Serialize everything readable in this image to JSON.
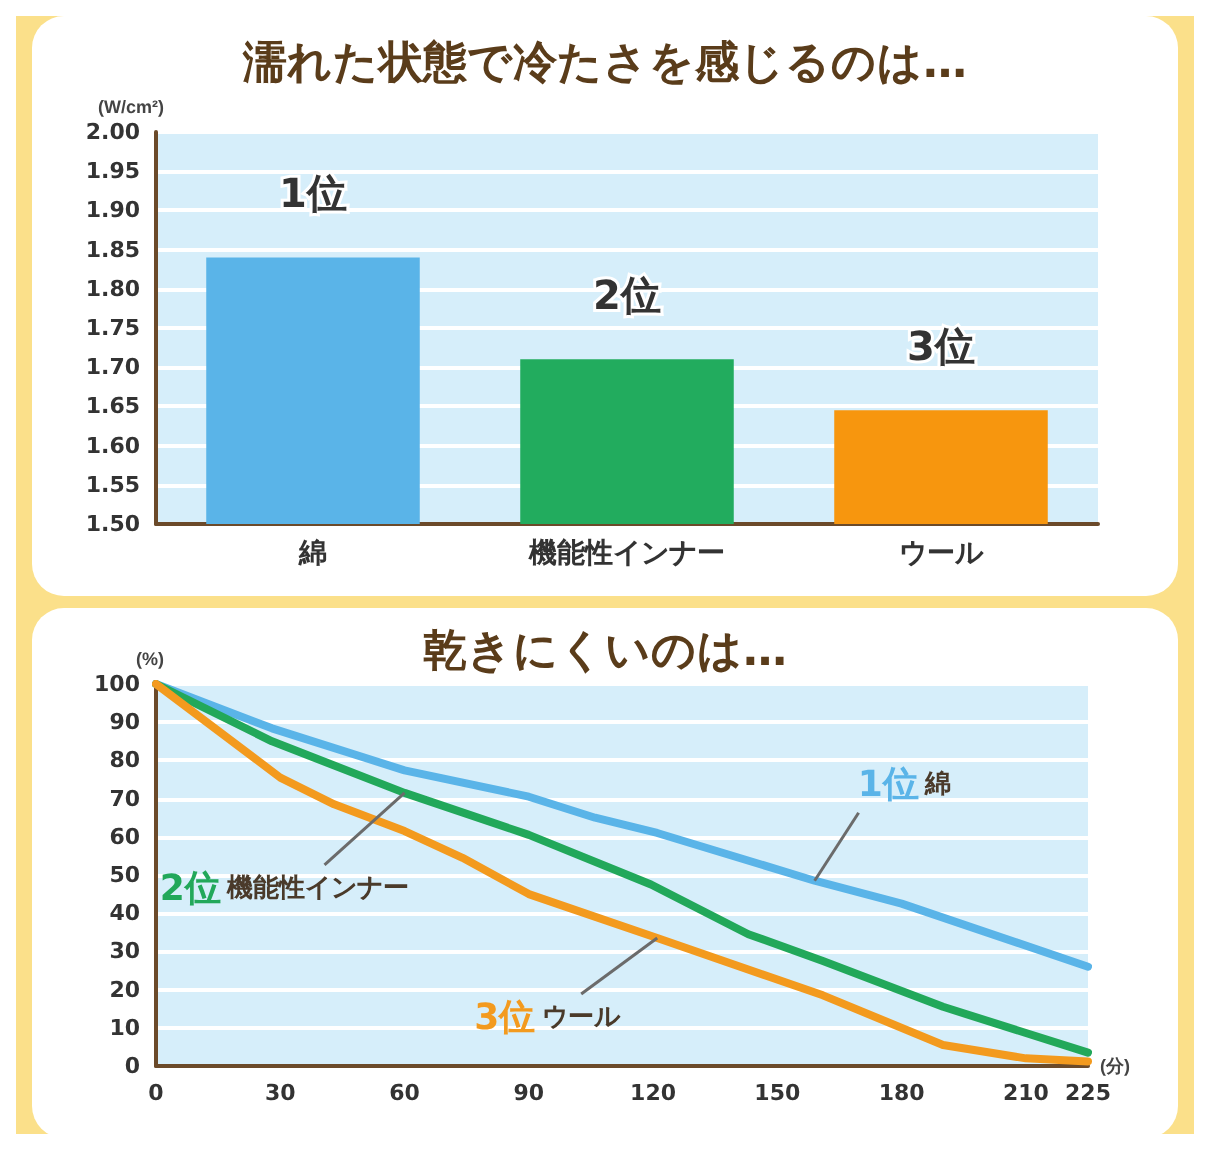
{
  "chart_data": [
    {
      "type": "bar",
      "title": "濡れた状態で冷たさを感じるのは…",
      "ylabel": "(W/cm²)",
      "categories": [
        "綿",
        "機能性インナー",
        "ウール"
      ],
      "values": [
        1.84,
        1.71,
        1.645
      ],
      "colors": [
        "#5ab4e8",
        "#22ac5e",
        "#f7960e"
      ],
      "ylim": [
        1.5,
        2.0
      ],
      "yticks": [
        {
          "value": 1.5,
          "label": "1.50"
        },
        1.55,
        {
          "value": 1.6,
          "label": "1.60"
        },
        1.65,
        {
          "value": 1.7,
          "label": "1.70"
        },
        1.75,
        {
          "value": 1.8,
          "label": "1.80"
        },
        1.85,
        {
          "value": 1.9,
          "label": "1.90"
        },
        1.95,
        {
          "value": 2.0,
          "label": "2.00"
        }
      ],
      "grid": "y",
      "legend": false,
      "annotations": [
        "1位",
        "2位",
        "3位"
      ]
    },
    {
      "type": "line",
      "title": "乾きにくいのは…",
      "ylabel": "(%)",
      "xlabel": "(分)",
      "series": [
        {
          "name": "1位 綿",
          "color": "#5ab4e8",
          "x": [
            0,
            28,
            60,
            90,
            106,
            121,
            159,
            180,
            225
          ],
          "values": [
            100,
            88.4,
            77.4,
            70.5,
            65,
            61,
            48.5,
            42.5,
            26
          ]
        },
        {
          "name": "2位 機能性インナー",
          "color": "#22a85a",
          "x": [
            0,
            28,
            60,
            90,
            119.5,
            143,
            161,
            190,
            225
          ],
          "values": [
            100,
            85,
            71.5,
            60.5,
            47.5,
            34.5,
            27.5,
            15.5,
            3.5
          ]
        },
        {
          "name": "3位 ウール",
          "color": "#f39a1e",
          "x": [
            0,
            30,
            43,
            60,
            74,
            90,
            121,
            161,
            190,
            210,
            225
          ],
          "values": [
            100,
            75.5,
            68.5,
            61.5,
            54.5,
            45,
            33.5,
            18.5,
            5.5,
            2,
            1.2
          ]
        }
      ],
      "xlim": [
        0,
        225
      ],
      "xticks": [
        0,
        30,
        60,
        90,
        120,
        150,
        180,
        210,
        225
      ],
      "ylim": [
        0,
        100
      ],
      "yticks": [
        0,
        10,
        20,
        30,
        40,
        50,
        60,
        70,
        80,
        90,
        100
      ],
      "grid": "y",
      "legend": false,
      "marker": "none",
      "line_style": "solid"
    }
  ]
}
